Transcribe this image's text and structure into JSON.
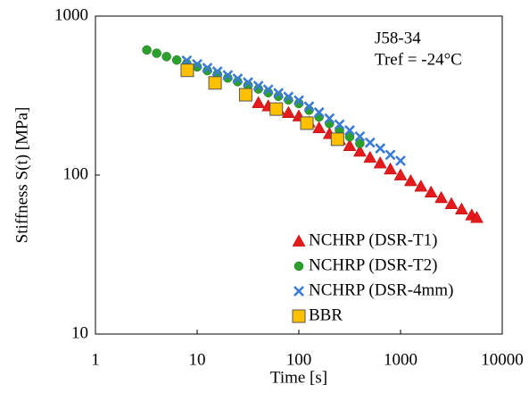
{
  "chart_data": {
    "type": "scatter",
    "xlabel": "Time [s]",
    "ylabel": "Stiffness S(t) [MPa]",
    "annotations": [
      "J58-34",
      "Tref = -24°C"
    ],
    "xscale": "log",
    "yscale": "log",
    "xlim": [
      1,
      10000
    ],
    "ylim": [
      10,
      1000
    ],
    "xticks": [
      1,
      10,
      100,
      1000,
      10000
    ],
    "yticks": [
      10,
      100,
      1000
    ],
    "legend": "lower right",
    "series": [
      {
        "name": "NCHRP (DSR-T1)",
        "color": "#e41a1c",
        "marker": "triangle",
        "x": [
          40,
          50,
          63,
          79,
          100,
          126,
          158,
          200,
          251,
          316,
          398,
          501,
          631,
          794,
          1000,
          1259,
          1585,
          1995,
          2512,
          3162,
          3981,
          5012,
          5623
        ],
        "values": [
          285,
          272,
          259,
          247,
          235,
          215,
          198,
          182,
          167,
          153,
          141,
          129,
          119,
          109,
          100,
          92,
          85,
          78,
          72,
          66,
          61,
          56,
          54
        ]
      },
      {
        "name": "NCHRP (DSR-T2)",
        "color": "#2ca02c",
        "marker": "circle",
        "x": [
          3.2,
          4,
          5,
          6.3,
          7.9,
          10,
          12.6,
          15.8,
          20,
          25,
          31.6,
          40,
          50,
          63,
          79,
          100,
          126,
          158,
          200,
          251,
          316,
          398
        ],
        "values": [
          612,
          584,
          556,
          529,
          503,
          479,
          454,
          431,
          408,
          387,
          367,
          348,
          330,
          313,
          297,
          282,
          256,
          232,
          211,
          191,
          174,
          158
        ]
      },
      {
        "name": "NCHRP (DSR-4mm)",
        "color": "#3a7bd5",
        "marker": "x",
        "x": [
          7.9,
          10,
          12.6,
          15.8,
          20,
          25,
          31.6,
          40,
          50,
          63,
          79,
          100,
          126,
          158,
          200,
          251,
          316,
          398,
          501,
          631,
          794,
          1000
        ],
        "values": [
          525,
          498,
          472,
          448,
          425,
          404,
          383,
          364,
          345,
          328,
          311,
          295,
          270,
          248,
          227,
          208,
          191,
          175,
          160,
          147,
          134,
          123
        ]
      },
      {
        "name": "BBR",
        "color": "#ffc000",
        "marker": "square",
        "x": [
          8,
          15,
          30,
          60,
          120,
          240
        ],
        "values": [
          456,
          380,
          320,
          260,
          212,
          168
        ]
      }
    ]
  }
}
